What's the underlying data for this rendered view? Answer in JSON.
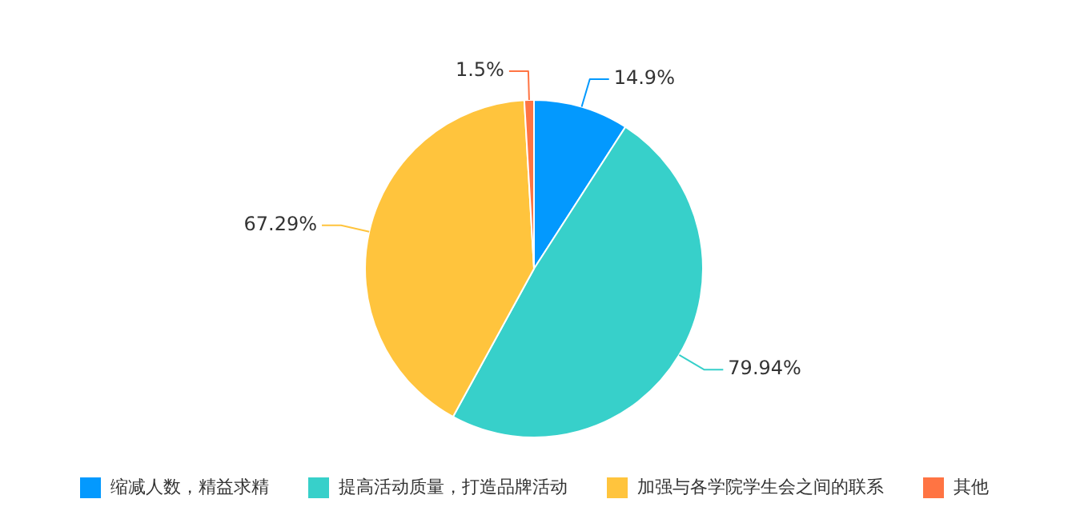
{
  "chart_data": {
    "type": "pie",
    "categories": [
      "缩减人数，精益求精",
      "提高活动质量，打造品牌活动",
      "加强与各学院学生会之间的联系",
      "其他"
    ],
    "values": [
      14.9,
      79.94,
      67.29,
      1.5
    ],
    "value_labels": [
      "14.9%",
      "79.94%",
      "67.29%",
      "1.5%"
    ],
    "colors": [
      "#0399fe",
      "#37d0ca",
      "#ffc43d",
      "#ff7443"
    ],
    "legend": "bottom"
  }
}
